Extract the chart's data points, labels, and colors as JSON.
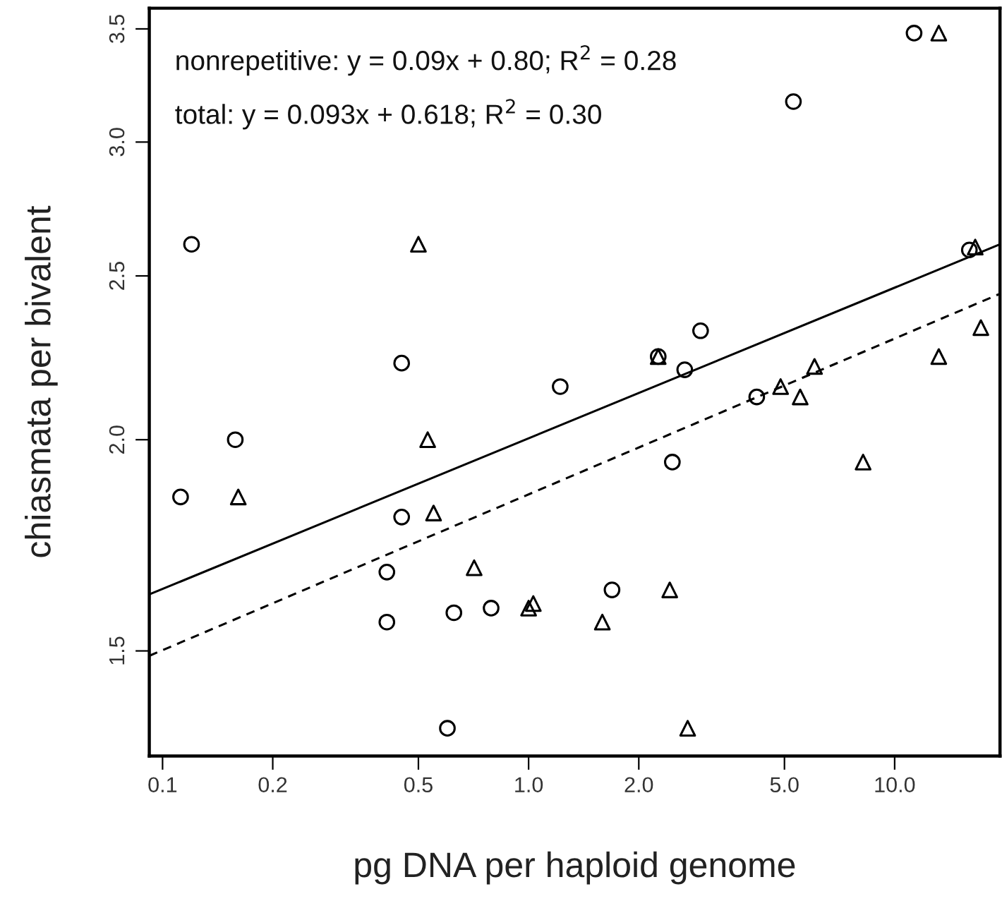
{
  "chart_data": {
    "type": "scatter",
    "xlabel": "pg DNA per haploid genome",
    "ylabel": "chiasmata per bivalent",
    "annotations": [
      "nonrepetitive: y = 0.09x + 0.80; R$^{2}$ = 0.28",
      "total: y = 0.093x + 0.618; R$^{2}$ = 0.30"
    ],
    "log": "xy",
    "grid": false,
    "legend": false,
    "xlim": [
      0.092,
      19.4
    ],
    "ylim": [
      1.3,
      3.6
    ],
    "xticks": [
      0.1,
      0.2,
      0.5,
      {
        "value": 1,
        "label": "1.0"
      },
      {
        "value": 2,
        "label": "2.0"
      },
      {
        "value": 5,
        "label": "5.0"
      },
      {
        "value": 10,
        "label": "10.0"
      }
    ],
    "yticks": [
      1.5,
      {
        "value": 2,
        "label": "2.0"
      },
      2.5,
      {
        "value": 3,
        "label": "3.0"
      },
      3.5
    ],
    "series": [
      {
        "marker": "circle",
        "color": "#000000",
        "x": [
          11.3,
          5.29,
          0.12,
          0.45,
          0.158,
          1.22,
          2.26,
          2.67,
          2.95,
          4.2,
          16.0,
          0.112,
          0.45,
          0.41,
          0.41,
          0.625,
          0.79,
          1.69,
          2.47,
          0.6
        ],
        "values": [
          3.48,
          3.17,
          2.61,
          2.22,
          2.0,
          2.15,
          2.24,
          2.2,
          2.32,
          2.12,
          2.59,
          1.85,
          1.8,
          1.67,
          1.56,
          1.58,
          1.59,
          1.63,
          1.94,
          1.35
        ]
      },
      {
        "marker": "triangle",
        "color": "#000000",
        "x": [
          13.2,
          0.5,
          0.53,
          2.26,
          6.04,
          4.88,
          5.52,
          13.2,
          17.2,
          16.6,
          0.161,
          0.55,
          0.71,
          1.0,
          1.03,
          1.59,
          2.43,
          8.2,
          2.72
        ],
        "values": [
          3.48,
          2.61,
          2.0,
          2.24,
          2.21,
          2.15,
          2.12,
          2.24,
          2.33,
          2.6,
          1.85,
          1.81,
          1.68,
          1.59,
          1.6,
          1.56,
          1.63,
          1.94,
          1.35
        ]
      },
      {
        "type": "line",
        "line_style": "solid",
        "color": "#000000",
        "x": [
          0.092,
          19.4
        ],
        "values": [
          1.62,
          2.61
        ]
      },
      {
        "type": "line",
        "line_style": "dashed",
        "color": "#000000",
        "x": [
          0.092,
          19.4
        ],
        "values": [
          1.49,
          2.44
        ]
      }
    ]
  }
}
